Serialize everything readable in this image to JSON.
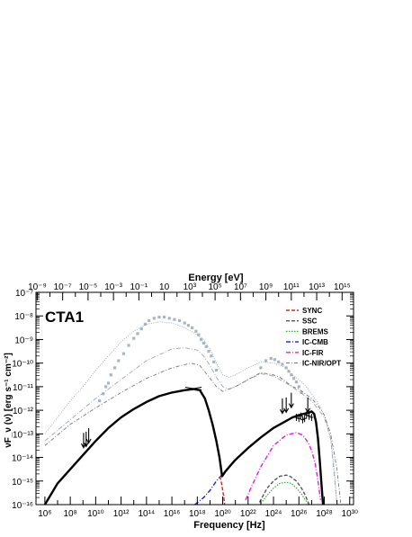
{
  "chart_data": {
    "type": "line",
    "title": "CTA1",
    "xlabel": "Frequency [Hz]",
    "ylabel": "νF_ν (ν) [erg s⁻¹ cm⁻²]",
    "top_axis_label": "Energy [eV]",
    "x_scale": "log",
    "y_scale": "log",
    "xlim_log10": [
      5.3,
      30.3
    ],
    "ylim_log10": [
      -16,
      -7
    ],
    "top_xlim_log10_ev": [
      -9.1,
      15.9
    ],
    "x_tick_exponents": [
      6,
      8,
      10,
      12,
      14,
      16,
      18,
      20,
      22,
      24,
      26,
      28,
      30
    ],
    "x_tick_labels": [
      "10⁶",
      "10⁸",
      "10¹⁰",
      "10¹²",
      "10¹⁴",
      "10¹⁶",
      "10¹⁸",
      "10²⁰",
      "10²²",
      "10²⁴",
      "10²⁶",
      "10²⁸",
      "10³⁰"
    ],
    "y_tick_exponents": [
      -16,
      -15,
      -14,
      -13,
      -12,
      -11,
      -10,
      -9,
      -8,
      -7
    ],
    "y_tick_labels": [
      "10⁻¹⁶",
      "10⁻¹⁵",
      "10⁻¹⁴",
      "10⁻¹³",
      "10⁻¹²",
      "10⁻¹¹",
      "10⁻¹⁰",
      "10⁻⁹",
      "10⁻⁸",
      "10⁻⁷"
    ],
    "top_tick_exponents": [
      -9,
      -7,
      -5,
      -3,
      -1,
      1,
      3,
      5,
      7,
      9,
      11,
      13,
      15
    ],
    "top_tick_labels": [
      "10⁻⁹",
      "10⁻⁷",
      "10⁻⁵",
      "10⁻³",
      "10⁻¹",
      "10",
      "10³",
      "10⁵",
      "10⁷",
      "10⁹",
      "10¹¹",
      "10¹³",
      "10¹⁵"
    ],
    "legend_position": "top-right",
    "colors": {
      "total": "#000000",
      "sync": "#e32222",
      "ssc": "#555555",
      "brems": "#2cb52c",
      "ic_cmb": "#1e1ed2",
      "ic_fir": "#e01ee0",
      "ic_nir_opt": "#777777",
      "gray_band": "#9aa6b0",
      "points": "#a9b6c1"
    },
    "series": [
      {
        "key": "total",
        "x": [
          6.0,
          7.0,
          8.0,
          9.0,
          10.0,
          11.0,
          12.0,
          13.0,
          14.0,
          15.0,
          16.0,
          17.0,
          17.7,
          18.2,
          18.6,
          18.9,
          19.2,
          19.5,
          19.75,
          19.95,
          20.2,
          20.6,
          21.0,
          22.0,
          23.0,
          24.0,
          25.0,
          25.5,
          26.0,
          26.4,
          26.8,
          27.0,
          27.2,
          27.35,
          27.5,
          27.65,
          27.8,
          27.9
        ],
        "y": [
          -16.0,
          -15.1,
          -14.5,
          -13.9,
          -13.3,
          -12.75,
          -12.3,
          -11.95,
          -11.65,
          -11.4,
          -11.25,
          -11.15,
          -11.1,
          -11.15,
          -11.5,
          -12.0,
          -12.6,
          -13.3,
          -14.0,
          -14.8,
          -14.6,
          -14.35,
          -14.1,
          -13.6,
          -13.15,
          -12.75,
          -12.45,
          -12.3,
          -12.2,
          -12.15,
          -12.1,
          -12.05,
          -12.15,
          -12.5,
          -13.2,
          -14.2,
          -15.3,
          -16.0
        ]
      },
      {
        "key": "sync",
        "x": [
          19.8,
          19.9,
          20.0,
          20.1,
          20.15
        ],
        "y": [
          -14.8,
          -15.1,
          -15.4,
          -15.75,
          -16.0
        ]
      },
      {
        "key": "ic_cmb",
        "x": [
          17.8,
          18.5,
          19.0,
          19.5,
          20.0,
          21.0,
          22.0,
          23.0,
          24.0,
          25.0,
          25.5,
          26.0,
          26.4,
          26.8,
          27.0,
          27.2,
          27.35,
          27.5,
          27.65,
          27.8,
          27.9
        ],
        "y": [
          -16.0,
          -15.7,
          -15.4,
          -15.0,
          -14.7,
          -14.1,
          -13.6,
          -13.15,
          -12.75,
          -12.45,
          -12.3,
          -12.2,
          -12.15,
          -12.1,
          -12.1,
          -12.15,
          -12.5,
          -13.2,
          -14.2,
          -15.3,
          -16.0
        ]
      },
      {
        "key": "ic_fir",
        "x": [
          21.8,
          22.3,
          23.0,
          24.0,
          25.0,
          25.8,
          26.3,
          26.7,
          27.0,
          27.3,
          27.5,
          27.7
        ],
        "y": [
          -15.8,
          -15.2,
          -14.4,
          -13.5,
          -13.05,
          -12.95,
          -13.05,
          -13.35,
          -13.7,
          -14.3,
          -15.0,
          -15.8
        ]
      },
      {
        "key": "ssc",
        "x": [
          22.9,
          23.5,
          24.0,
          24.5,
          25.0,
          25.3,
          25.8,
          26.2,
          26.5,
          26.8
        ],
        "y": [
          -15.9,
          -15.3,
          -15.0,
          -14.8,
          -14.75,
          -14.8,
          -15.0,
          -15.3,
          -15.6,
          -16.0
        ]
      },
      {
        "key": "brems",
        "x": [
          23.0,
          23.5,
          24.0,
          24.5,
          25.0,
          25.4,
          25.8,
          26.2,
          26.5,
          26.8
        ],
        "y": [
          -15.95,
          -15.6,
          -15.3,
          -15.1,
          -15.05,
          -15.1,
          -15.3,
          -15.55,
          -15.8,
          -16.0
        ]
      },
      {
        "key": "ic_nir_opt",
        "x": [
          6.0,
          8.0,
          10.0,
          12.0,
          14.0,
          16.0,
          17.5,
          18.2,
          18.8,
          19.5,
          20.0,
          21.0,
          22.0,
          23.0,
          24.0,
          24.5,
          25.0,
          25.5,
          26.0,
          26.5,
          27.0,
          27.5,
          28.0,
          28.5,
          29.0,
          29.3
        ],
        "y": [
          -13.5,
          -12.6,
          -11.9,
          -11.25,
          -10.65,
          -10.2,
          -10.0,
          -10.1,
          -10.5,
          -11.0,
          -11.2,
          -11.0,
          -10.7,
          -10.4,
          -10.5,
          -10.6,
          -10.8,
          -11.0,
          -11.1,
          -11.3,
          -11.5,
          -11.8,
          -12.2,
          -13.0,
          -14.5,
          -16.0
        ]
      },
      {
        "key": "upper_envelope",
        "x": [
          6.0,
          7.0,
          8.0,
          9.0,
          10.0,
          11.0,
          12.0,
          13.0,
          14.0,
          15.0,
          16.0,
          17.0,
          18.0,
          18.5,
          19.0,
          19.5,
          20.0,
          20.5,
          21.0,
          22.0,
          23.0,
          24.0,
          24.5,
          25.0,
          25.5,
          26.0,
          26.5,
          27.0,
          27.5,
          28.0,
          28.5,
          28.8,
          29.0
        ],
        "y": [
          -13.0,
          -12.3,
          -11.6,
          -11.0,
          -10.3,
          -9.7,
          -9.1,
          -8.65,
          -8.35,
          -8.25,
          -8.3,
          -8.5,
          -8.8,
          -9.0,
          -9.4,
          -10.0,
          -10.5,
          -10.6,
          -10.5,
          -10.2,
          -9.95,
          -10.0,
          -10.1,
          -10.2,
          -10.5,
          -10.7,
          -10.95,
          -11.3,
          -11.7,
          -12.2,
          -13.2,
          -14.5,
          -16.0
        ]
      },
      {
        "key": "middle_envelope",
        "x": [
          6.0,
          8.0,
          10.0,
          12.0,
          14.0,
          16.0,
          17.0,
          18.0,
          18.5,
          19.0,
          19.5,
          20.0,
          20.5,
          21.0,
          22.0,
          23.0,
          24.0,
          25.0,
          26.0,
          27.0,
          28.0,
          28.5,
          29.0
        ],
        "y": [
          -13.3,
          -12.4,
          -11.5,
          -10.7,
          -9.9,
          -9.4,
          -9.35,
          -9.45,
          -9.7,
          -10.1,
          -10.6,
          -11.0,
          -11.1,
          -11.0,
          -10.7,
          -10.45,
          -10.55,
          -10.85,
          -11.2,
          -11.6,
          -12.3,
          -13.2,
          -16.0
        ]
      }
    ],
    "gray_points": {
      "x": [
        10.3,
        10.6,
        10.8,
        11.0,
        11.2,
        11.5,
        11.8,
        12.2,
        12.6,
        13.0,
        13.3,
        13.6,
        13.9,
        14.2,
        14.6,
        15.0,
        15.4,
        15.8,
        16.2,
        16.6,
        17.0,
        17.3,
        17.6,
        17.9,
        18.1,
        18.3,
        18.5,
        18.7,
        18.9,
        19.1,
        19.3,
        19.5,
        23.0,
        23.4,
        23.8,
        24.1,
        24.4,
        24.7,
        25.0,
        25.2,
        25.4,
        25.6,
        25.8,
        26.0,
        26.2
      ],
      "y": [
        -11.6,
        -11.3,
        -11.0,
        -10.85,
        -10.5,
        -10.2,
        -9.9,
        -9.6,
        -9.25,
        -8.95,
        -8.75,
        -8.55,
        -8.35,
        -8.2,
        -8.1,
        -8.05,
        -8.05,
        -8.1,
        -8.15,
        -8.2,
        -8.3,
        -8.4,
        -8.5,
        -8.65,
        -8.8,
        -9.0,
        -9.15,
        -9.3,
        -9.5,
        -9.7,
        -9.95,
        -10.3,
        -10.2,
        -9.9,
        -9.8,
        -9.85,
        -9.95,
        -10.05,
        -10.2,
        -10.35,
        -10.5,
        -10.65,
        -10.8,
        -11.0,
        -11.25
      ]
    },
    "upper_limits": {
      "x": [
        9.05,
        9.25,
        9.45,
        24.7,
        25.0,
        25.4,
        26.7
      ],
      "y": [
        -13.3,
        -13.25,
        -13.1,
        -11.85,
        -11.8,
        -11.6,
        -11.8
      ]
    },
    "black_points": {
      "x": [
        25.8,
        26.0,
        26.15,
        26.3,
        26.45,
        26.6,
        26.8,
        27.0
      ],
      "y": [
        -12.3,
        -12.35,
        -12.25,
        -12.4,
        -12.35,
        -12.2,
        -12.25,
        -12.3
      ]
    },
    "legend": [
      {
        "key": "sync",
        "label": "SYNC"
      },
      {
        "key": "ssc",
        "label": "SSC"
      },
      {
        "key": "brems",
        "label": "BREMS"
      },
      {
        "key": "ic_cmb",
        "label": "IC-CMB"
      },
      {
        "key": "ic_fir",
        "label": "IC-FIR"
      },
      {
        "key": "ic_nir_opt",
        "label": "IC-NIR/OPT"
      }
    ]
  }
}
